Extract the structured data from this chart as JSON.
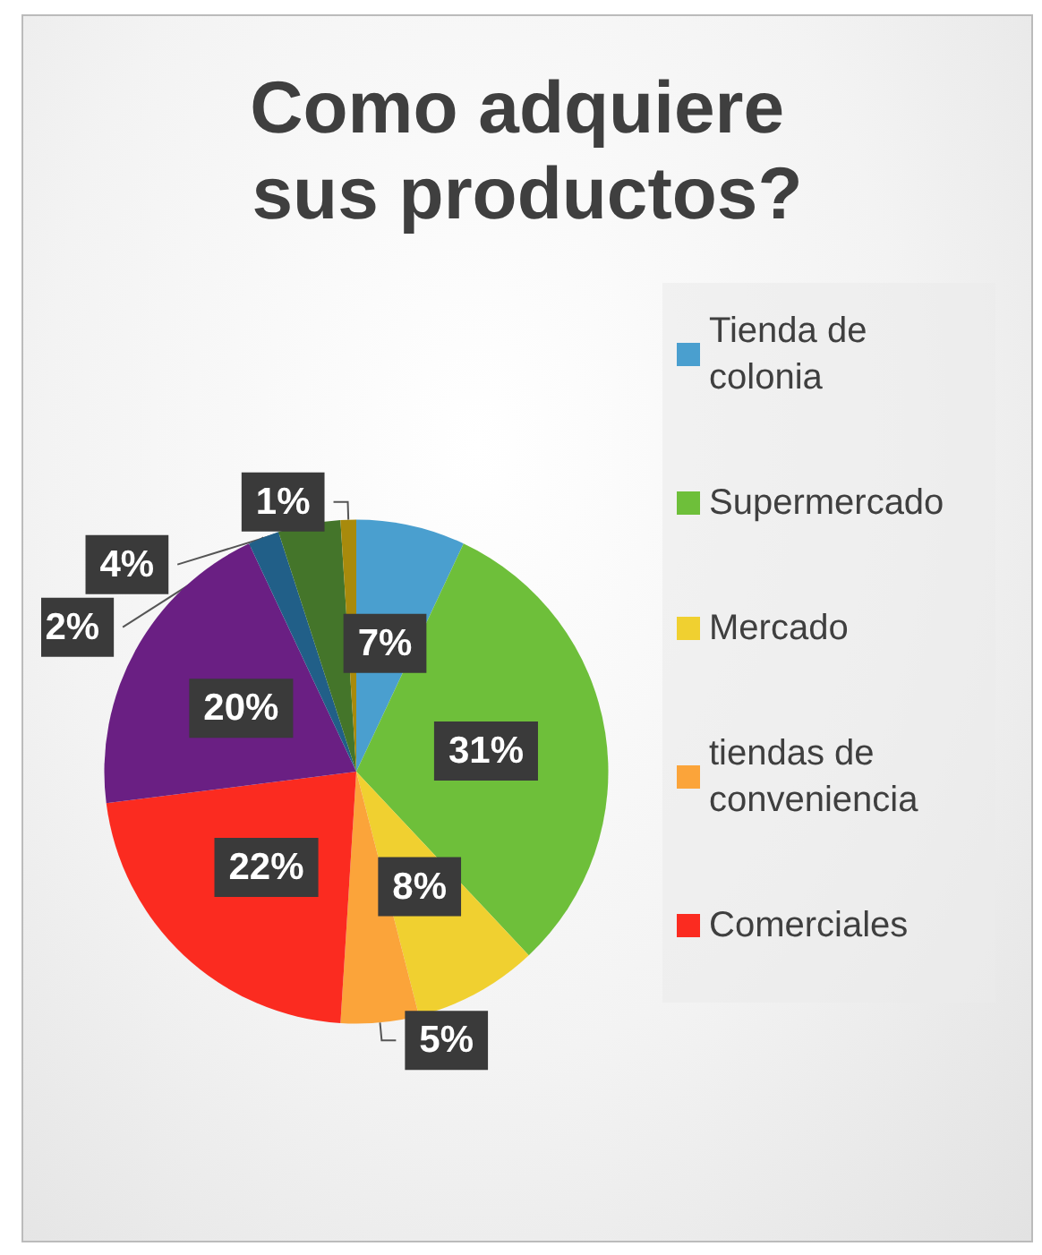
{
  "chart_data": {
    "type": "pie",
    "title": "Como adquiere sus productos?",
    "categories": [
      "Tienda de colonia",
      "Supermercado",
      "Mercado",
      "tiendas de conveniencia",
      "Comerciales",
      null,
      null,
      null,
      null
    ],
    "values": [
      7,
      31,
      8,
      5,
      22,
      20,
      2,
      4,
      1
    ],
    "colors": [
      "#4a9fcf",
      "#6ebf3a",
      "#f0d030",
      "#fba43a",
      "#fb2b20",
      "#6a1f83",
      "#215f88",
      "#44752a",
      "#a88a0c"
    ],
    "value_labels": [
      "7%",
      "31%",
      "8%",
      "5%",
      "22%",
      "20%",
      "2%",
      "4%",
      "1%"
    ],
    "legend": "right"
  }
}
